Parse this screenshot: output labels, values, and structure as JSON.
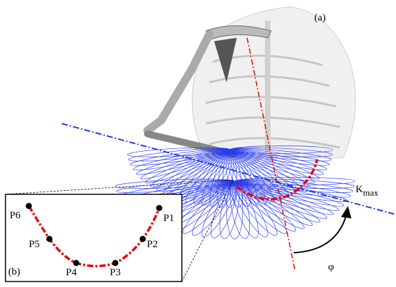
{
  "panel_a_label": "(a)",
  "panel_b_label": "(b)",
  "axis_label": {
    "main": "K",
    "subscript": "max"
  },
  "angle_label": "φ",
  "points": [
    "P1",
    "P2",
    "P3",
    "P4",
    "P5",
    "P6"
  ]
}
